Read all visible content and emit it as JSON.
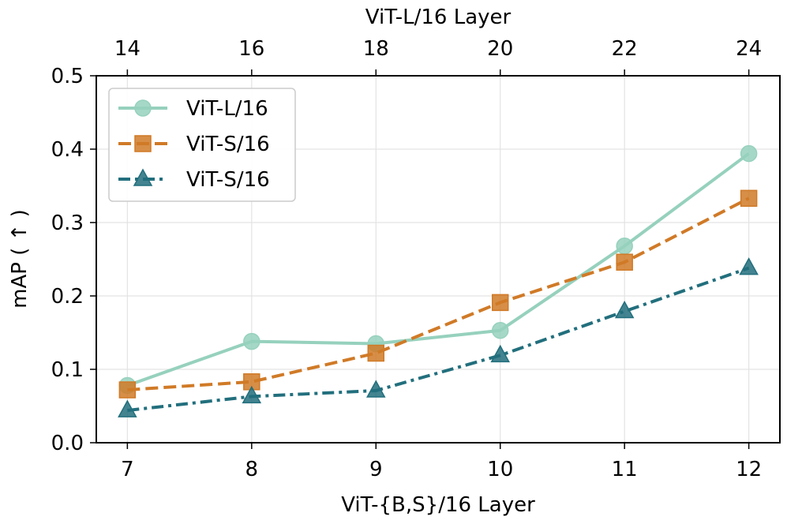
{
  "chart_data": {
    "type": "line",
    "x": [
      7,
      8,
      9,
      10,
      11,
      12
    ],
    "xlabel": "ViT-{B,S}/16 Layer",
    "x_top_ticks": [
      "14",
      "16",
      "18",
      "20",
      "22",
      "24"
    ],
    "x_top_label": "ViT-L/16 Layer",
    "ylabel": "mAP ( ↑ )",
    "xlim": [
      6.75,
      12.25
    ],
    "ylim": [
      0.0,
      0.5
    ],
    "yticks": [
      0.0,
      0.1,
      0.2,
      0.3,
      0.4,
      0.5
    ],
    "ytick_labels": [
      "0.0",
      "0.1",
      "0.2",
      "0.3",
      "0.4",
      "0.5"
    ],
    "xtick_labels": [
      "7",
      "8",
      "9",
      "10",
      "11",
      "12"
    ],
    "grid": true,
    "legend_position": "top-left",
    "series": [
      {
        "name": "ViT-L/16",
        "values": [
          0.078,
          0.138,
          0.135,
          0.153,
          0.268,
          0.394
        ],
        "color": "#96d1bd",
        "marker": "circle",
        "linestyle": "solid"
      },
      {
        "name": "ViT-S/16",
        "values": [
          0.072,
          0.083,
          0.122,
          0.191,
          0.246,
          0.333
        ],
        "color": "#d07a27",
        "marker": "square",
        "linestyle": "dashed"
      },
      {
        "name": "ViT-S/16",
        "values": [
          0.044,
          0.063,
          0.071,
          0.119,
          0.179,
          0.238
        ],
        "color": "#226f7d",
        "marker": "triangle",
        "linestyle": "dashdot"
      }
    ]
  }
}
